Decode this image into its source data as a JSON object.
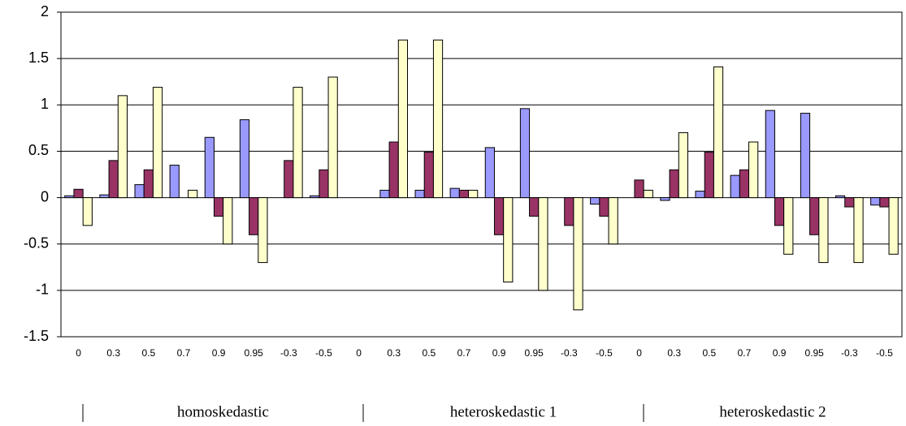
{
  "chart_data": {
    "type": "bar",
    "categories": [
      "0",
      "0.3",
      "0.5",
      "0.7",
      "0.9",
      "0.95",
      "-0.3",
      "-0.5",
      "0",
      "0.3",
      "0.5",
      "0.7",
      "0.9",
      "0.95",
      "-0.3",
      "-0.5",
      "0",
      "0.3",
      "0.5",
      "0.7",
      "0.9",
      "0.95",
      "-0.3",
      "-0.5"
    ],
    "groups": [
      "homoskedastic",
      "heteroskedastic  1",
      "heteroskedastic 2"
    ],
    "series": [
      {
        "color": "#9999ff",
        "values": [
          0.02,
          0.03,
          0.14,
          0.35,
          0.65,
          0.84,
          0,
          0.02,
          0,
          0.08,
          0.08,
          0.1,
          0.54,
          0.96,
          0,
          -0.07,
          0,
          -0.03,
          0.07,
          0.24,
          0.94,
          0.91,
          0.02,
          -0.08
        ]
      },
      {
        "color": "#993366",
        "values": [
          0.09,
          0.4,
          0.3,
          0,
          -0.2,
          -0.4,
          0.4,
          0.3,
          0,
          0.6,
          0.49,
          0.08,
          -0.4,
          -0.2,
          -0.3,
          -0.2,
          0.19,
          0.3,
          0.49,
          0.3,
          -0.3,
          -0.4,
          -0.1,
          -0.1
        ]
      },
      {
        "color": "#ffffcc",
        "values": [
          -0.3,
          1.1,
          1.19,
          0.08,
          -0.5,
          -0.7,
          1.19,
          1.3,
          0,
          1.7,
          1.7,
          0.08,
          -0.91,
          -1.0,
          -1.21,
          -0.5,
          0.08,
          0.7,
          1.41,
          0.6,
          -0.61,
          -0.7,
          -0.7,
          -0.61
        ]
      }
    ],
    "ylim": [
      -1.5,
      2
    ],
    "yticks": [
      -1.5,
      -1,
      -0.5,
      0,
      0.5,
      1,
      1.5,
      2
    ],
    "grid": true
  }
}
